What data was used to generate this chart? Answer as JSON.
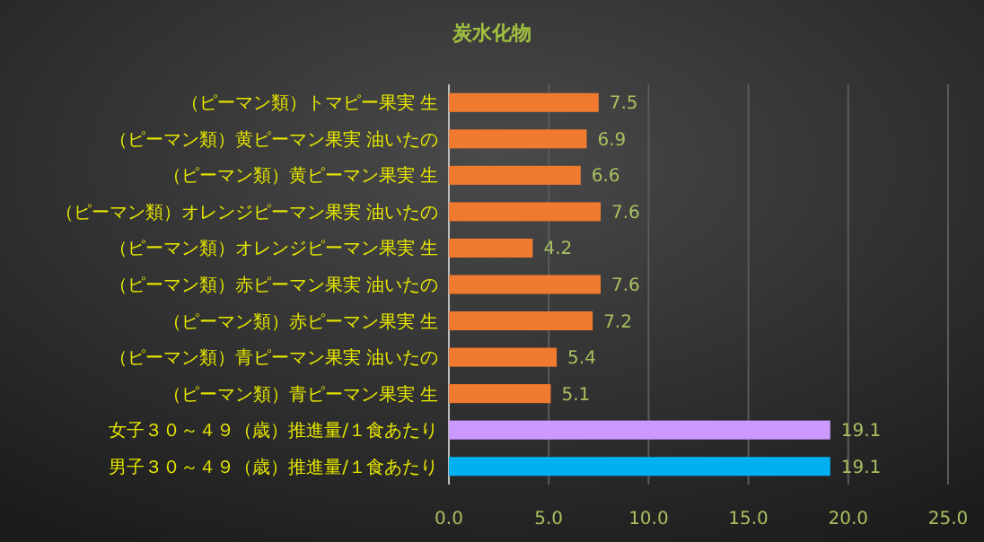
{
  "chart_data": {
    "type": "bar",
    "orientation": "horizontal",
    "title": "炭水化物",
    "categories": [
      "（ピーマン類）トマピー果実 生",
      "（ピーマン類）黄ピーマン果実 油いたの",
      "（ピーマン類）黄ピーマン果実 生",
      "（ピーマン類）オレンジピーマン果実 油いたの",
      "（ピーマン類）オレンジピーマン果実 生",
      "（ピーマン類）赤ピーマン果実 油いたの",
      "（ピーマン類）赤ピーマン果実 生",
      "（ピーマン類）青ピーマン果実 油いたの",
      "（ピーマン類）青ピーマン果実 生",
      "女子３０～４９（歳）推進量/１食あたり",
      "男子３０～４９（歳）推進量/１食あたり"
    ],
    "values": [
      7.5,
      6.9,
      6.6,
      7.6,
      4.2,
      7.6,
      7.2,
      5.4,
      5.1,
      19.1,
      19.1
    ],
    "colors": [
      "#f07a30",
      "#f07a30",
      "#f07a30",
      "#f07a30",
      "#f07a30",
      "#f07a30",
      "#f07a30",
      "#f07a30",
      "#f07a30",
      "#cc99ff",
      "#00b0f0"
    ],
    "xlim": [
      0,
      25
    ],
    "xticks": [
      {
        "value": 0,
        "label": "0.0"
      },
      {
        "value": 5,
        "label": "5.0"
      },
      {
        "value": 10,
        "label": "10.0"
      },
      {
        "value": 15,
        "label": "15.0"
      },
      {
        "value": 20,
        "label": "20.0"
      },
      {
        "value": 25,
        "label": "25.0"
      }
    ],
    "grid": "x",
    "data_labels": true
  }
}
